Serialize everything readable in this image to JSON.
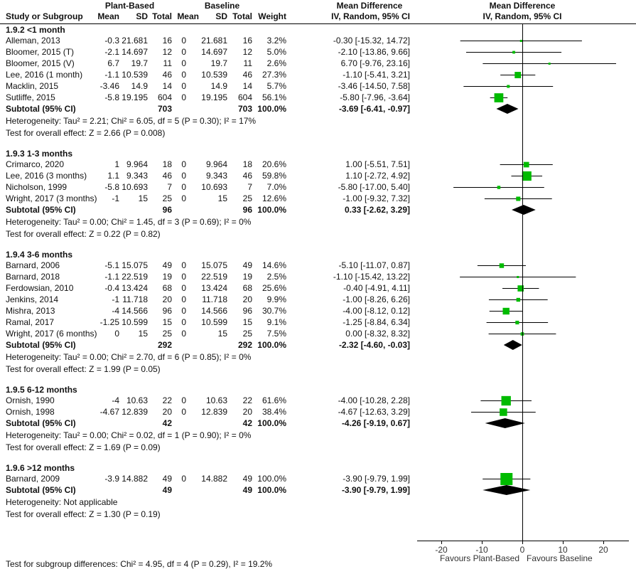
{
  "header": {
    "group1": "Plant-Based",
    "group2": "Baseline",
    "effect_col": "Mean Difference",
    "plot_title": "Mean Difference",
    "plot_subtitle": "IV, Random, 95% CI",
    "study_col": "Study or Subgroup",
    "mean": "Mean",
    "sd": "SD",
    "total": "Total",
    "weight": "Weight",
    "method": "IV, Random, 95% CI"
  },
  "chart_data": {
    "type": "forest",
    "xlim": [
      -25,
      25
    ],
    "x_ticks": [
      -20,
      -10,
      0,
      10,
      20
    ],
    "x_tick_labels": [
      "-20",
      "-10",
      "0",
      "10",
      "20"
    ],
    "left_label": "Favours Plant-Based",
    "right_label": "Favours Baseline",
    "marker_color": "#00bb00",
    "subgroups": [
      {
        "title": "1.9.2 <1 month",
        "studies": [
          {
            "name": "Alleman, 2013",
            "pb_mean": "-0.3",
            "pb_sd": "21.681",
            "pb_n": "16",
            "b_mean": "0",
            "b_sd": "21.681",
            "b_n": "16",
            "weight": "3.2%",
            "w": 3.2,
            "ci_text": "-0.30 [-15.32, 14.72]",
            "md": -0.3,
            "lo": -15.32,
            "hi": 14.72
          },
          {
            "name": "Bloomer, 2015 (T)",
            "pb_mean": "-2.1",
            "pb_sd": "14.697",
            "pb_n": "12",
            "b_mean": "0",
            "b_sd": "14.697",
            "b_n": "12",
            "weight": "5.0%",
            "w": 5.0,
            "ci_text": "-2.10 [-13.86, 9.66]",
            "md": -2.1,
            "lo": -13.86,
            "hi": 9.66
          },
          {
            "name": "Bloomer, 2015 (V)",
            "pb_mean": "6.7",
            "pb_sd": "19.7",
            "pb_n": "11",
            "b_mean": "0",
            "b_sd": "19.7",
            "b_n": "11",
            "weight": "2.6%",
            "w": 2.6,
            "ci_text": "6.70 [-9.76, 23.16]",
            "md": 6.7,
            "lo": -9.76,
            "hi": 23.16
          },
          {
            "name": "Lee, 2016 (1 month)",
            "pb_mean": "-1.1",
            "pb_sd": "10.539",
            "pb_n": "46",
            "b_mean": "0",
            "b_sd": "10.539",
            "b_n": "46",
            "weight": "27.3%",
            "w": 27.3,
            "ci_text": "-1.10 [-5.41, 3.21]",
            "md": -1.1,
            "lo": -5.41,
            "hi": 3.21
          },
          {
            "name": "Macklin, 2015",
            "pb_mean": "-3.46",
            "pb_sd": "14.9",
            "pb_n": "14",
            "b_mean": "0",
            "b_sd": "14.9",
            "b_n": "14",
            "weight": "5.7%",
            "w": 5.7,
            "ci_text": "-3.46 [-14.50, 7.58]",
            "md": -3.46,
            "lo": -14.5,
            "hi": 7.58
          },
          {
            "name": "Sutliffe, 2015",
            "pb_mean": "-5.8",
            "pb_sd": "19.195",
            "pb_n": "604",
            "b_mean": "0",
            "b_sd": "19.195",
            "b_n": "604",
            "weight": "56.1%",
            "w": 56.1,
            "ci_text": "-5.80 [-7.96, -3.64]",
            "md": -5.8,
            "lo": -7.96,
            "hi": -3.64
          }
        ],
        "subtotal": {
          "label": "Subtotal (95% CI)",
          "pb_n": "703",
          "b_n": "703",
          "weight": "100.0%",
          "ci_text": "-3.69 [-6.41, -0.97]",
          "md": -3.69,
          "lo": -6.41,
          "hi": -0.97
        },
        "heterogeneity": "Heterogeneity: Tau² = 2.21; Chi² = 6.05, df = 5 (P = 0.30); I² = 17%",
        "overall": "Test for overall effect: Z = 2.66 (P = 0.008)"
      },
      {
        "title": "1.9.3 1-3 months",
        "studies": [
          {
            "name": "Crimarco, 2020",
            "pb_mean": "1",
            "pb_sd": "9.964",
            "pb_n": "18",
            "b_mean": "0",
            "b_sd": "9.964",
            "b_n": "18",
            "weight": "20.6%",
            "w": 20.6,
            "ci_text": "1.00 [-5.51, 7.51]",
            "md": 1.0,
            "lo": -5.51,
            "hi": 7.51
          },
          {
            "name": "Lee, 2016 (3 months)",
            "pb_mean": "1.1",
            "pb_sd": "9.343",
            "pb_n": "46",
            "b_mean": "0",
            "b_sd": "9.343",
            "b_n": "46",
            "weight": "59.8%",
            "w": 59.8,
            "ci_text": "1.10 [-2.72, 4.92]",
            "md": 1.1,
            "lo": -2.72,
            "hi": 4.92
          },
          {
            "name": "Nicholson, 1999",
            "pb_mean": "-5.8",
            "pb_sd": "10.693",
            "pb_n": "7",
            "b_mean": "0",
            "b_sd": "10.693",
            "b_n": "7",
            "weight": "7.0%",
            "w": 7.0,
            "ci_text": "-5.80 [-17.00, 5.40]",
            "md": -5.8,
            "lo": -17.0,
            "hi": 5.4
          },
          {
            "name": "Wright, 2017 (3 months)",
            "pb_mean": "-1",
            "pb_sd": "15",
            "pb_n": "25",
            "b_mean": "0",
            "b_sd": "15",
            "b_n": "25",
            "weight": "12.6%",
            "w": 12.6,
            "ci_text": "-1.00 [-9.32, 7.32]",
            "md": -1.0,
            "lo": -9.32,
            "hi": 7.32
          }
        ],
        "subtotal": {
          "label": "Subtotal (95% CI)",
          "pb_n": "96",
          "b_n": "96",
          "weight": "100.0%",
          "ci_text": "0.33 [-2.62, 3.29]",
          "md": 0.33,
          "lo": -2.62,
          "hi": 3.29
        },
        "heterogeneity": "Heterogeneity: Tau² = 0.00; Chi² = 1.45, df = 3 (P = 0.69); I² = 0%",
        "overall": "Test for overall effect: Z = 0.22 (P = 0.82)"
      },
      {
        "title": "1.9.4 3-6 months",
        "studies": [
          {
            "name": "Barnard, 2006",
            "pb_mean": "-5.1",
            "pb_sd": "15.075",
            "pb_n": "49",
            "b_mean": "0",
            "b_sd": "15.075",
            "b_n": "49",
            "weight": "14.6%",
            "w": 14.6,
            "ci_text": "-5.10 [-11.07, 0.87]",
            "md": -5.1,
            "lo": -11.07,
            "hi": 0.87
          },
          {
            "name": "Barnard, 2018",
            "pb_mean": "-1.1",
            "pb_sd": "22.519",
            "pb_n": "19",
            "b_mean": "0",
            "b_sd": "22.519",
            "b_n": "19",
            "weight": "2.5%",
            "w": 2.5,
            "ci_text": "-1.10 [-15.42, 13.22]",
            "md": -1.1,
            "lo": -15.42,
            "hi": 13.22
          },
          {
            "name": "Ferdowsian, 2010",
            "pb_mean": "-0.4",
            "pb_sd": "13.424",
            "pb_n": "68",
            "b_mean": "0",
            "b_sd": "13.424",
            "b_n": "68",
            "weight": "25.6%",
            "w": 25.6,
            "ci_text": "-0.40 [-4.91, 4.11]",
            "md": -0.4,
            "lo": -4.91,
            "hi": 4.11
          },
          {
            "name": "Jenkins, 2014",
            "pb_mean": "-1",
            "pb_sd": "11.718",
            "pb_n": "20",
            "b_mean": "0",
            "b_sd": "11.718",
            "b_n": "20",
            "weight": "9.9%",
            "w": 9.9,
            "ci_text": "-1.00 [-8.26, 6.26]",
            "md": -1.0,
            "lo": -8.26,
            "hi": 6.26
          },
          {
            "name": "Mishra, 2013",
            "pb_mean": "-4",
            "pb_sd": "14.566",
            "pb_n": "96",
            "b_mean": "0",
            "b_sd": "14.566",
            "b_n": "96",
            "weight": "30.7%",
            "w": 30.7,
            "ci_text": "-4.00 [-8.12, 0.12]",
            "md": -4.0,
            "lo": -8.12,
            "hi": 0.12
          },
          {
            "name": "Ramal, 2017",
            "pb_mean": "-1.25",
            "pb_sd": "10.599",
            "pb_n": "15",
            "b_mean": "0",
            "b_sd": "10.599",
            "b_n": "15",
            "weight": "9.1%",
            "w": 9.1,
            "ci_text": "-1.25 [-8.84, 6.34]",
            "md": -1.25,
            "lo": -8.84,
            "hi": 6.34
          },
          {
            "name": "Wright, 2017 (6 months)",
            "pb_mean": "0",
            "pb_sd": "15",
            "pb_n": "25",
            "b_mean": "0",
            "b_sd": "15",
            "b_n": "25",
            "weight": "7.5%",
            "w": 7.5,
            "ci_text": "0.00 [-8.32, 8.32]",
            "md": 0.0,
            "lo": -8.32,
            "hi": 8.32
          }
        ],
        "subtotal": {
          "label": "Subtotal (95% CI)",
          "pb_n": "292",
          "b_n": "292",
          "weight": "100.0%",
          "ci_text": "-2.32 [-4.60, -0.03]",
          "md": -2.32,
          "lo": -4.6,
          "hi": -0.03
        },
        "heterogeneity": "Heterogeneity: Tau² = 0.00; Chi² = 2.70, df = 6 (P = 0.85); I² = 0%",
        "overall": "Test for overall effect: Z = 1.99 (P = 0.05)"
      },
      {
        "title": "1.9.5 6-12 months",
        "studies": [
          {
            "name": "Ornish, 1990",
            "pb_mean": "-4",
            "pb_sd": "10.63",
            "pb_n": "22",
            "b_mean": "0",
            "b_sd": "10.63",
            "b_n": "22",
            "weight": "61.6%",
            "w": 61.6,
            "ci_text": "-4.00 [-10.28, 2.28]",
            "md": -4.0,
            "lo": -10.28,
            "hi": 2.28
          },
          {
            "name": "Ornish, 1998",
            "pb_mean": "-4.67",
            "pb_sd": "12.839",
            "pb_n": "20",
            "b_mean": "0",
            "b_sd": "12.839",
            "b_n": "20",
            "weight": "38.4%",
            "w": 38.4,
            "ci_text": "-4.67 [-12.63, 3.29]",
            "md": -4.67,
            "lo": -12.63,
            "hi": 3.29
          }
        ],
        "subtotal": {
          "label": "Subtotal (95% CI)",
          "pb_n": "42",
          "b_n": "42",
          "weight": "100.0%",
          "ci_text": "-4.26 [-9.19, 0.67]",
          "md": -4.26,
          "lo": -9.19,
          "hi": 0.67
        },
        "heterogeneity": "Heterogeneity: Tau² = 0.00; Chi² = 0.02, df = 1 (P = 0.90); I² = 0%",
        "overall": "Test for overall effect: Z = 1.69 (P = 0.09)"
      },
      {
        "title": "1.9.6 >12 months",
        "studies": [
          {
            "name": "Barnard, 2009",
            "pb_mean": "-3.9",
            "pb_sd": "14.882",
            "pb_n": "49",
            "b_mean": "0",
            "b_sd": "14.882",
            "b_n": "49",
            "weight": "100.0%",
            "w": 100.0,
            "ci_text": "-3.90 [-9.79, 1.99]",
            "md": -3.9,
            "lo": -9.79,
            "hi": 1.99
          }
        ],
        "subtotal": {
          "label": "Subtotal (95% CI)",
          "pb_n": "49",
          "b_n": "49",
          "weight": "100.0%",
          "ci_text": "-3.90 [-9.79, 1.99]",
          "md": -3.9,
          "lo": -9.79,
          "hi": 1.99
        },
        "heterogeneity": "Heterogeneity: Not applicable",
        "overall": "Test for overall effect: Z = 1.30 (P = 0.19)"
      }
    ],
    "footer": "Test for subgroup differences: Chi² = 4.95, df = 4 (P = 0.29), I² = 19.2%"
  }
}
